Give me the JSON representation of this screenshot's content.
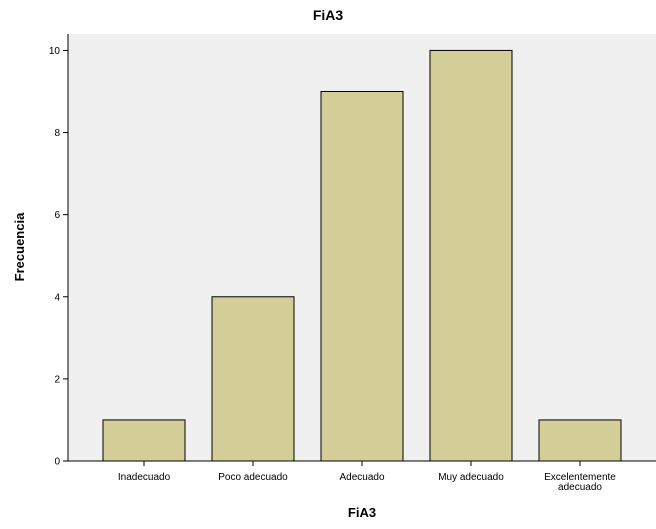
{
  "chart_data": {
    "type": "bar",
    "title": "FiA3",
    "xlabel": "FiA3",
    "ylabel": "Frecuencia",
    "categories": [
      "Inadecuado",
      "Poco adecuado",
      "Adecuado",
      "Muy adecuado",
      "Excelentemente adecuado"
    ],
    "category_label_lines": [
      [
        "Inadecuado"
      ],
      [
        "Poco adecuado"
      ],
      [
        "Adecuado"
      ],
      [
        "Muy adecuado"
      ],
      [
        "Excelentemente",
        "adecuado"
      ]
    ],
    "values": [
      1,
      4,
      9,
      10,
      1
    ],
    "ylim": [
      0,
      10.4
    ],
    "yticks": [
      0,
      2,
      4,
      6,
      8,
      10
    ],
    "grid": false,
    "legend": "none",
    "colors": {
      "plot_background": "#F0F0F0",
      "bar_fill": "#D3CE97",
      "bar_stroke": "#000000",
      "axis": "#000000"
    }
  }
}
